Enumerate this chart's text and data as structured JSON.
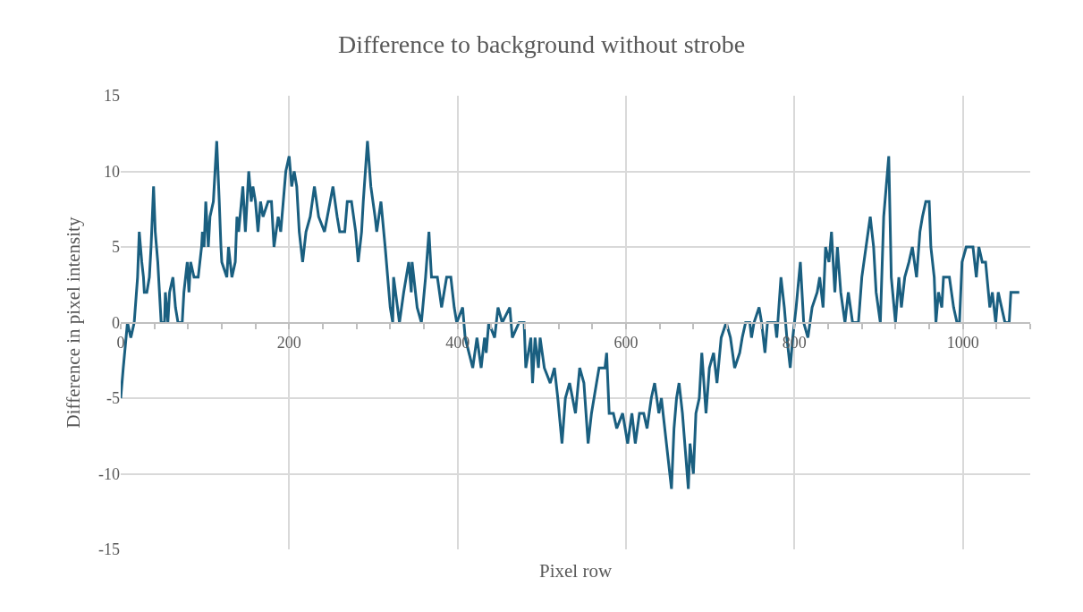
{
  "chart_data": {
    "type": "line",
    "title": "Difference to background without strobe",
    "xlabel": "Pixel row",
    "ylabel": "Difference in pixel intensity",
    "xlim": [
      0,
      1080
    ],
    "ylim": [
      -15,
      15
    ],
    "yticks": [
      -15,
      -10,
      -5,
      0,
      5,
      10,
      15
    ],
    "xticks": [
      0,
      {
        "value": 40,
        "label": null
      },
      {
        "value": 80,
        "label": null
      },
      {
        "value": 120,
        "label": null
      },
      {
        "value": 160,
        "label": null
      },
      200,
      {
        "value": 240,
        "label": null
      },
      {
        "value": 280,
        "label": null
      },
      {
        "value": 320,
        "label": null
      },
      {
        "value": 360,
        "label": null
      },
      400,
      {
        "value": 440,
        "label": null
      },
      {
        "value": 480,
        "label": null
      },
      {
        "value": 520,
        "label": null
      },
      {
        "value": 560,
        "label": null
      },
      600,
      {
        "value": 640,
        "label": null
      },
      {
        "value": 680,
        "label": null
      },
      {
        "value": 720,
        "label": null
      },
      {
        "value": 760,
        "label": null
      },
      800,
      {
        "value": 840,
        "label": null
      },
      {
        "value": 880,
        "label": null
      },
      {
        "value": 920,
        "label": null
      },
      {
        "value": 960,
        "label": null
      },
      1000,
      {
        "value": 1040,
        "label": null
      },
      {
        "value": 1080,
        "label": null
      }
    ],
    "grid": true,
    "marker": "none",
    "line_style": "solid",
    "series": [
      {
        "color": "#1a5f80",
        "x": [
          0,
          3,
          8,
          12,
          16,
          20,
          22,
          25,
          27,
          28,
          31,
          34,
          36,
          39,
          41,
          44,
          47,
          48,
          52,
          53,
          56,
          58,
          62,
          65,
          68,
          73,
          75,
          79,
          81,
          83,
          87,
          92,
          96,
          97,
          99,
          101,
          104,
          106,
          110,
          114,
          117,
          119,
          120,
          126,
          128,
          132,
          136,
          138,
          140,
          145,
          148,
          152,
          155,
          157,
          160,
          163,
          166,
          169,
          175,
          179,
          182,
          187,
          190,
          193,
          196,
          200,
          203,
          206,
          209,
          212,
          216,
          220,
          225,
          230,
          235,
          242,
          252,
          257,
          260,
          266,
          269,
          274,
          279,
          282,
          286,
          288,
          293,
          297,
          302,
          304,
          309,
          314,
          320,
          323,
          324,
          331,
          336,
          342,
          345,
          346,
          352,
          357,
          362,
          366,
          369,
          376,
          381,
          387,
          392,
          396,
          399,
          406,
          409,
          418,
          423,
          428,
          432,
          434,
          437,
          444,
          448,
          453,
          462,
          465,
          473,
          479,
          481,
          487,
          489,
          492,
          496,
          498,
          503,
          510,
          515,
          519,
          524,
          528,
          533,
          540,
          545,
          550,
          555,
          559,
          565,
          568,
          575,
          577,
          580,
          585,
          589,
          596,
          602,
          607,
          611,
          616,
          621,
          625,
          630,
          634,
          639,
          642,
          648,
          654,
          657,
          660,
          663,
          667,
          674,
          676,
          680,
          683,
          687,
          690,
          695,
          699,
          704,
          708,
          713,
          719,
          724,
          729,
          735,
          738,
          742,
          747,
          749,
          752,
          758,
          761,
          765,
          768,
          777,
          779,
          784,
          788,
          791,
          795,
          798,
          802,
          807,
          811,
          816,
          821,
          827,
          830,
          834,
          837,
          841,
          844,
          848,
          851,
          855,
          860,
          864,
          869,
          876,
          880,
          885,
          890,
          894,
          897,
          902,
          906,
          909,
          912,
          915,
          920,
          924,
          927,
          931,
          936,
          940,
          945,
          949,
          952,
          956,
          960,
          962,
          966,
          968,
          971,
          975,
          977,
          984,
          989,
          993,
          996,
          999,
          1004,
          1012,
          1016,
          1019,
          1023,
          1027,
          1032,
          1035,
          1039,
          1042,
          1046,
          1050,
          1055,
          1057,
          1067
        ],
        "values": [
          -5,
          -3,
          0,
          -1,
          0,
          3,
          6,
          4,
          3,
          2,
          2,
          3,
          5,
          9,
          6,
          4,
          1,
          0,
          0,
          2,
          0,
          2,
          3,
          1,
          0,
          0,
          2,
          4,
          2,
          4,
          3,
          3,
          5,
          6,
          5,
          8,
          5,
          7,
          8,
          12,
          8,
          5,
          4,
          3,
          5,
          3,
          4,
          7,
          6,
          9,
          6,
          10,
          8,
          9,
          8,
          6,
          8,
          7,
          8,
          8,
          5,
          7,
          6,
          8,
          10,
          11,
          9,
          10,
          9,
          6,
          4,
          6,
          7,
          9,
          7,
          6,
          9,
          7,
          6,
          6,
          8,
          8,
          6,
          4,
          6,
          8,
          12,
          9,
          7,
          6,
          8,
          5,
          1,
          0,
          3,
          0,
          2,
          4,
          2,
          4,
          1,
          0,
          3,
          6,
          3,
          3,
          1,
          3,
          3,
          1,
          0,
          1,
          -1,
          -3,
          -1,
          -3,
          -1,
          -2,
          0,
          -1,
          1,
          0,
          1,
          -1,
          0,
          0,
          -3,
          -1,
          -4,
          -1,
          -3,
          -1,
          -3,
          -4,
          -3,
          -5,
          -8,
          -5,
          -4,
          -6,
          -3,
          -4,
          -8,
          -6,
          -4,
          -3,
          -3,
          -2,
          -6,
          -6,
          -7,
          -6,
          -8,
          -6,
          -8,
          -6,
          -6,
          -7,
          -5,
          -4,
          -6,
          -5,
          -8,
          -11,
          -7,
          -5,
          -4,
          -6,
          -11,
          -8,
          -10,
          -6,
          -5,
          -2,
          -6,
          -3,
          -2,
          -4,
          -1,
          0,
          -1,
          -3,
          -2,
          -1,
          0,
          0,
          -1,
          0,
          1,
          0,
          -2,
          0,
          0,
          -1,
          3,
          1,
          -1,
          -3,
          -1,
          1,
          4,
          0,
          -1,
          1,
          2,
          3,
          1,
          5,
          4,
          6,
          2,
          5,
          2,
          0,
          2,
          0,
          0,
          3,
          5,
          7,
          5,
          2,
          0,
          7,
          9,
          11,
          3,
          0,
          3,
          1,
          3,
          4,
          5,
          3,
          6,
          7,
          8,
          8,
          5,
          3,
          0,
          2,
          1,
          3,
          3,
          1,
          0,
          0,
          4,
          5,
          5,
          3,
          5,
          4,
          4,
          1,
          2,
          0,
          2,
          1,
          0,
          0,
          2,
          2
        ]
      }
    ]
  }
}
